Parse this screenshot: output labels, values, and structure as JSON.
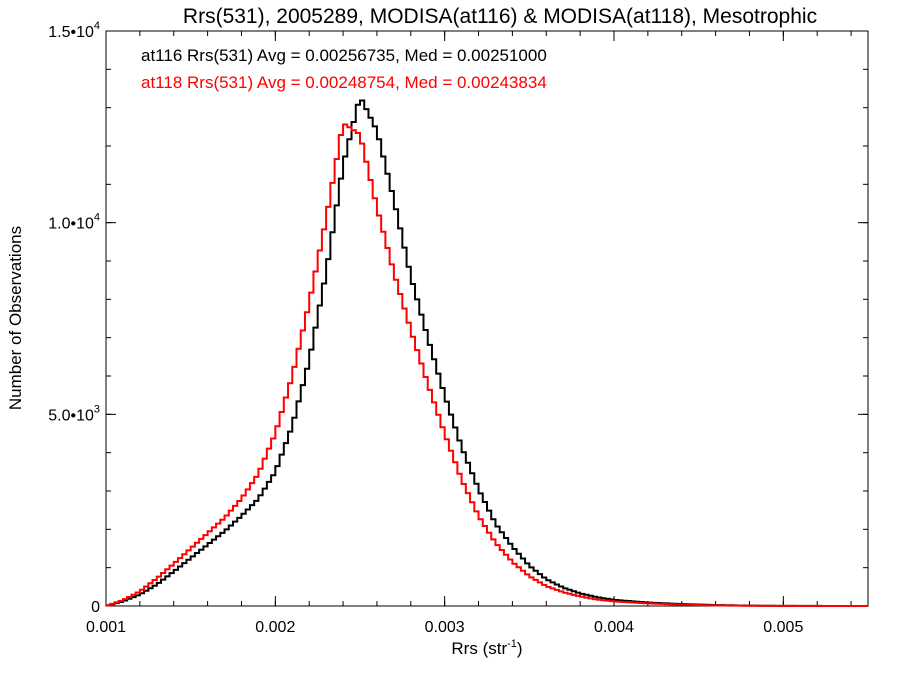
{
  "chart_data": {
    "type": "line",
    "style": "step-histogram",
    "title": "Rrs(531), 2005289, MODISA(at116) & MODISA(at118), Mesotrophic",
    "xlabel_base": "Rrs (str",
    "xlabel_sup": "-1",
    "xlabel_close": ")",
    "ylabel": "Number of Observations",
    "xlim": [
      0.001,
      0.0055
    ],
    "ylim": [
      0,
      15000
    ],
    "x_ticks": [
      {
        "value": 0.001,
        "label": "0.001"
      },
      {
        "value": 0.002,
        "label": "0.002"
      },
      {
        "value": 0.003,
        "label": "0.003"
      },
      {
        "value": 0.004,
        "label": "0.004"
      },
      {
        "value": 0.005,
        "label": "0.005"
      }
    ],
    "y_ticks": [
      {
        "value": 0,
        "mantissa": "0",
        "exponent": ""
      },
      {
        "value": 5000,
        "mantissa": "5.0•10",
        "exponent": "3"
      },
      {
        "value": 10000,
        "mantissa": "1.0•10",
        "exponent": "4"
      },
      {
        "value": 15000,
        "mantissa": "1.5•10",
        "exponent": "4"
      }
    ],
    "x_minor_per_major": 5,
    "y_minor_per_major": 5,
    "grid": false,
    "legend": "top-left",
    "annotations": [
      {
        "text": "at116 Rrs(531) Avg = 0.00256735, Med = 0.00251000",
        "color": "#000000"
      },
      {
        "text": "at118 Rrs(531) Avg = 0.00248754, Med = 0.00243834",
        "color": "#ff0000"
      }
    ],
    "series": [
      {
        "color": "#000000",
        "points": [
          [
            0.001,
            0
          ],
          [
            0.0011,
            120
          ],
          [
            0.0012,
            300
          ],
          [
            0.0013,
            560
          ],
          [
            0.0014,
            900
          ],
          [
            0.0015,
            1250
          ],
          [
            0.0016,
            1600
          ],
          [
            0.0017,
            1950
          ],
          [
            0.0018,
            2350
          ],
          [
            0.0019,
            2800
          ],
          [
            0.002,
            3500
          ],
          [
            0.0021,
            4700
          ],
          [
            0.0022,
            6400
          ],
          [
            0.0023,
            8700
          ],
          [
            0.0024,
            11500
          ],
          [
            0.0025,
            13300
          ],
          [
            0.0026,
            12400
          ],
          [
            0.0027,
            10600
          ],
          [
            0.0028,
            8600
          ],
          [
            0.0029,
            7000
          ],
          [
            0.003,
            5500
          ],
          [
            0.0031,
            4150
          ],
          [
            0.0032,
            3050
          ],
          [
            0.0033,
            2150
          ],
          [
            0.0034,
            1550
          ],
          [
            0.0035,
            1050
          ],
          [
            0.0036,
            700
          ],
          [
            0.0037,
            480
          ],
          [
            0.0038,
            330
          ],
          [
            0.0039,
            230
          ],
          [
            0.004,
            160
          ],
          [
            0.0042,
            90
          ],
          [
            0.0044,
            50
          ],
          [
            0.0046,
            25
          ],
          [
            0.0048,
            10
          ],
          [
            0.005,
            3
          ],
          [
            0.0055,
            0
          ]
        ]
      },
      {
        "color": "#ff0000",
        "points": [
          [
            0.001,
            0
          ],
          [
            0.0011,
            150
          ],
          [
            0.0012,
            380
          ],
          [
            0.0013,
            720
          ],
          [
            0.0014,
            1100
          ],
          [
            0.0015,
            1500
          ],
          [
            0.0016,
            1900
          ],
          [
            0.0017,
            2300
          ],
          [
            0.0018,
            2800
          ],
          [
            0.0019,
            3450
          ],
          [
            0.002,
            4500
          ],
          [
            0.0021,
            6000
          ],
          [
            0.0022,
            7900
          ],
          [
            0.0023,
            10100
          ],
          [
            0.0024,
            12600
          ],
          [
            0.0025,
            12300
          ],
          [
            0.0026,
            10400
          ],
          [
            0.0027,
            8700
          ],
          [
            0.0028,
            7200
          ],
          [
            0.0029,
            5800
          ],
          [
            0.003,
            4500
          ],
          [
            0.0031,
            3300
          ],
          [
            0.0032,
            2350
          ],
          [
            0.0033,
            1650
          ],
          [
            0.0034,
            1150
          ],
          [
            0.0035,
            780
          ],
          [
            0.0036,
            520
          ],
          [
            0.0037,
            360
          ],
          [
            0.0038,
            250
          ],
          [
            0.0039,
            170
          ],
          [
            0.004,
            120
          ],
          [
            0.0042,
            70
          ],
          [
            0.0044,
            35
          ],
          [
            0.0046,
            15
          ],
          [
            0.0048,
            6
          ],
          [
            0.005,
            2
          ],
          [
            0.0055,
            0
          ]
        ]
      }
    ]
  }
}
